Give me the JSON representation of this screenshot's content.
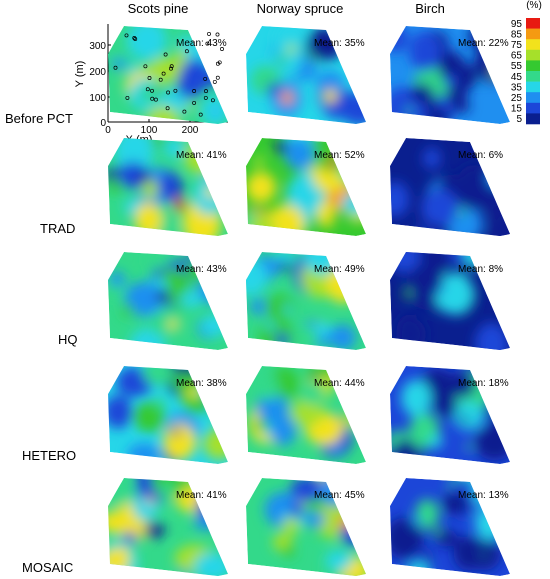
{
  "chart_data": {
    "type": "heatmap",
    "columns": [
      "Scots pine",
      "Norway spruce",
      "Birch"
    ],
    "rows": [
      "Before PCT",
      "TRAD",
      "HQ",
      "HETERO",
      "MOSAIC"
    ],
    "mean_prefix": "Mean:",
    "means": [
      [
        "43%",
        "35%",
        "22%"
      ],
      [
        "41%",
        "52%",
        "6%"
      ],
      [
        "43%",
        "49%",
        "8%"
      ],
      [
        "38%",
        "44%",
        "18%"
      ],
      [
        "41%",
        "45%",
        "13%"
      ]
    ],
    "mean_values": [
      [
        43,
        35,
        22
      ],
      [
        41,
        52,
        6
      ],
      [
        43,
        49,
        8
      ],
      [
        38,
        44,
        18
      ],
      [
        41,
        45,
        13
      ]
    ],
    "axes": {
      "xlabel": "X (m)",
      "ylabel": "Y (m)",
      "x_ticks": [
        "0",
        "100",
        "200"
      ],
      "y_ticks": [
        "0",
        "100",
        "200",
        "300"
      ],
      "xlim": [
        0,
        290
      ],
      "ylim": [
        0,
        370
      ]
    },
    "colorbar": {
      "unit": "(%)",
      "ticks": [
        "5",
        "15",
        "25",
        "35",
        "45",
        "55",
        "65",
        "75",
        "85",
        "95"
      ],
      "levels": [
        5,
        15,
        25,
        35,
        45,
        55,
        65,
        75,
        85,
        95
      ],
      "colors": [
        "#0a1f8f",
        "#1c46d8",
        "#1f8ff0",
        "#26d6e8",
        "#33d98a",
        "#35c930",
        "#a6e02a",
        "#f2e21c",
        "#f59a12",
        "#e81a12"
      ]
    }
  }
}
